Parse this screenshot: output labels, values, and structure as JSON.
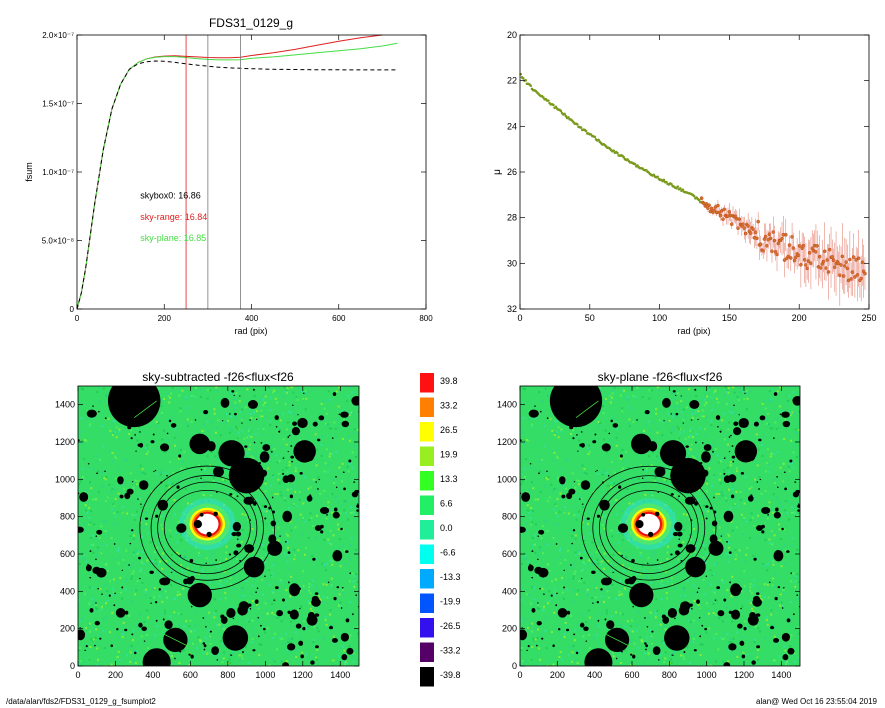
{
  "footer": {
    "path": "/data/alan/fds2/FDS31_0129_g_fsumplot2",
    "stamp": "alan@  Wed Oct 16 23:55:04 2019"
  },
  "colors": {
    "skybox": "#000000",
    "sky_range": "#e02020",
    "sky_plane": "#44dd44",
    "profile_line": "#7a9a1e",
    "mu_points": "#d03020",
    "mu_points_fill": "#c87828",
    "map_background": "#33dd66",
    "map_noise": [
      "#22cc55",
      "#55ee55",
      "#33e0a0",
      "#88ee33",
      "#2fd488"
    ],
    "masks": "#000000",
    "galaxy_rim": [
      "#ffff00",
      "#ff8800",
      "#ee1111"
    ],
    "galaxy_core": "#ffffff"
  },
  "chart_data": [
    {
      "type": "line",
      "title": "FDS31_0129_g",
      "xlabel": "rad (pix)",
      "ylabel": "fsum",
      "xlim": [
        0,
        800
      ],
      "ylim": [
        0,
        2e-07
      ],
      "xticks": [
        "0",
        "200",
        "400",
        "600",
        "800"
      ],
      "yticks": [
        "0",
        "5.0×10⁻⁸",
        "1.0×10⁻⁷",
        "1.5×10⁻⁷",
        "2.0×10⁻⁷"
      ],
      "vlines": [
        250,
        300,
        375
      ],
      "annotations": [
        {
          "text": "skybox0: 16.86",
          "color": "#000000",
          "x": 145,
          "y": 8.05e-08
        },
        {
          "text": "sky-range: 16.84",
          "color": "#e02020",
          "x": 145,
          "y": 6.5e-08
        },
        {
          "text": "sky-plane: 16.85",
          "color": "#44dd44",
          "x": 145,
          "y": 4.95e-08
        }
      ],
      "series": [
        {
          "x": [
            0,
            10,
            20,
            40,
            60,
            80,
            100,
            120,
            140,
            160,
            180,
            200,
            225,
            250,
            275,
            300,
            325,
            350,
            375,
            400,
            450,
            500,
            550,
            600,
            650,
            700
          ],
          "values": [
            0,
            1.2e-08,
            3e-08,
            7.6e-08,
            1.16e-07,
            1.46e-07,
            1.64e-07,
            1.75e-07,
            1.8e-07,
            1.826e-07,
            1.84e-07,
            1.846e-07,
            1.848e-07,
            1.844e-07,
            1.84e-07,
            1.836e-07,
            1.834e-07,
            1.834e-07,
            1.838e-07,
            1.85e-07,
            1.87e-07,
            1.895e-07,
            1.925e-07,
            1.955e-07,
            1.98e-07,
            2e-07
          ]
        },
        {
          "x": [
            0,
            10,
            20,
            40,
            60,
            80,
            100,
            120,
            140,
            160,
            180,
            200,
            225,
            250,
            275,
            300,
            325,
            350,
            375,
            400,
            450,
            500,
            550,
            600,
            650,
            700,
            735
          ],
          "values": [
            0,
            1.2e-08,
            3e-08,
            7.6e-08,
            1.16e-07,
            1.46e-07,
            1.64e-07,
            1.75e-07,
            1.8e-07,
            1.826e-07,
            1.838e-07,
            1.842e-07,
            1.842e-07,
            1.836e-07,
            1.828e-07,
            1.822e-07,
            1.818e-07,
            1.818e-07,
            1.82e-07,
            1.83e-07,
            1.84e-07,
            1.855e-07,
            1.87e-07,
            1.885e-07,
            1.9e-07,
            1.92e-07,
            1.94e-07
          ]
        },
        {
          "x": [
            0,
            10,
            20,
            40,
            60,
            80,
            100,
            120,
            140,
            160,
            180,
            200,
            225,
            250,
            275,
            300,
            325,
            350,
            375,
            400,
            450,
            500,
            550,
            600,
            650,
            700,
            735
          ],
          "values": [
            0,
            1.2e-08,
            3e-08,
            7.6e-08,
            1.16e-07,
            1.46e-07,
            1.64e-07,
            1.75e-07,
            1.79e-07,
            1.805e-07,
            1.81e-07,
            1.808e-07,
            1.8e-07,
            1.79e-07,
            1.78e-07,
            1.772e-07,
            1.765e-07,
            1.76e-07,
            1.757e-07,
            1.754e-07,
            1.75e-07,
            1.748e-07,
            1.746e-07,
            1.746e-07,
            1.745e-07,
            1.745e-07,
            1.745e-07
          ]
        }
      ]
    },
    {
      "type": "scatter",
      "title": "",
      "xlabel": "rad (pix)",
      "ylabel": "μ",
      "xlim": [
        0,
        250
      ],
      "ylim": [
        32,
        20
      ],
      "xticks": [
        "0",
        "50",
        "100",
        "150",
        "200",
        "250"
      ],
      "yticks": [
        "20",
        "22",
        "24",
        "26",
        "28",
        "30",
        "32"
      ],
      "profile": {
        "x": [
          0,
          5,
          10,
          20,
          30,
          40,
          50,
          60,
          70,
          80,
          90,
          100,
          110,
          120,
          130,
          140,
          150,
          160,
          170,
          180,
          190,
          200,
          210,
          220,
          230,
          240,
          250
        ],
        "values": [
          21.7,
          22.1,
          22.4,
          22.9,
          23.4,
          23.9,
          24.35,
          24.8,
          25.2,
          25.6,
          25.95,
          26.3,
          26.6,
          26.9,
          27.3,
          27.65,
          28.0,
          28.4,
          28.75,
          29.05,
          29.3,
          29.55,
          29.75,
          29.95,
          30.1,
          30.2,
          30.3
        ]
      }
    },
    {
      "type": "heatmap",
      "title": "sky-subtracted -f26<flux<f26",
      "xlim": [
        0,
        1500
      ],
      "ylim": [
        0,
        1500
      ],
      "xticks": [
        "0",
        "200",
        "400",
        "600",
        "800",
        "1000",
        "1200",
        "1400"
      ],
      "yticks": [
        "0",
        "200",
        "400",
        "600",
        "800",
        "1000",
        "1200",
        "1400"
      ]
    },
    {
      "type": "heatmap",
      "title": "sky-plane -f26<flux<f26",
      "xlim": [
        0,
        1500
      ],
      "ylim": [
        0,
        1500
      ],
      "xticks": [
        "0",
        "200",
        "400",
        "600",
        "800",
        "1000",
        "1200",
        "1400"
      ],
      "yticks": [
        "0",
        "200",
        "400",
        "600",
        "800",
        "1000",
        "1200",
        "1400"
      ]
    }
  ],
  "colorbar": {
    "labels": [
      "39.8",
      "33.2",
      "26.5",
      "19.9",
      "13.3",
      "6.6",
      "0.0",
      "-6.6",
      "-13.3",
      "-19.9",
      "-26.5",
      "-33.2",
      "-39.8"
    ],
    "colors": [
      "#ff1111",
      "#ff7f00",
      "#ffff00",
      "#99ee22",
      "#33ff22",
      "#22ee66",
      "#22ee99",
      "#00ffee",
      "#00aaff",
      "#0055ff",
      "#3311ee",
      "#550066",
      "#000000"
    ]
  }
}
